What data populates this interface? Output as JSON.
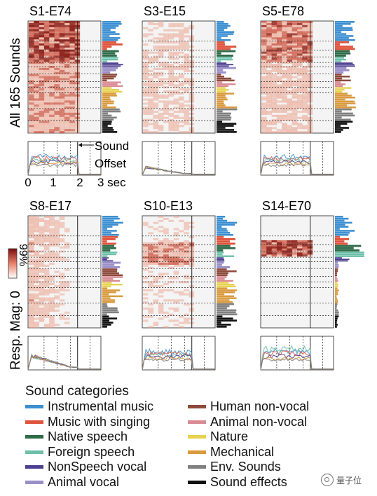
{
  "figure": {
    "ylabel_top": "All 165 Sounds",
    "ylabel_bottom": "Resp. Mag: 0",
    "colorbar_max": "99%",
    "time_ticks": [
      "0",
      "1",
      "2",
      "3 sec"
    ],
    "offset_label_line1": "Sound",
    "offset_label_line2": "Offset",
    "panels": [
      {
        "title": "S1-E74",
        "intensity": 0.95,
        "pattern": "broad"
      },
      {
        "title": "S3-E15",
        "intensity": 0.55,
        "pattern": "sparse"
      },
      {
        "title": "S5-E78",
        "intensity": 0.7,
        "pattern": "broad"
      },
      {
        "title": "S8-E17",
        "intensity": 0.6,
        "pattern": "onset"
      },
      {
        "title": "S10-E13",
        "intensity": 0.6,
        "pattern": "speech"
      },
      {
        "title": "S14-E70",
        "intensity": 0.9,
        "pattern": "speech-band"
      }
    ]
  },
  "legend": {
    "title": "Sound categories",
    "column1": [
      {
        "label": "Instrumental music",
        "color": "#3b8fd1"
      },
      {
        "label": "Music with singing",
        "color": "#e0533c"
      },
      {
        "label": "Native speech",
        "color": "#2f6b49"
      },
      {
        "label": "Foreign speech",
        "color": "#6cbfa8"
      },
      {
        "label": "NonSpeech vocal",
        "color": "#4c3f8f"
      },
      {
        "label": "Animal vocal",
        "color": "#9a8fc8"
      }
    ],
    "column2": [
      {
        "label": "Human non-vocal",
        "color": "#8e4a3a"
      },
      {
        "label": "Animal non-vocal",
        "color": "#d98a93"
      },
      {
        "label": "Nature",
        "color": "#e6d24f"
      },
      {
        "label": "Mechanical",
        "color": "#d99a3e"
      },
      {
        "label": "Env. Sounds",
        "color": "#808080"
      },
      {
        "label": "Sound effects",
        "color": "#111111"
      }
    ]
  },
  "watermark": {
    "text": "量子位"
  }
}
